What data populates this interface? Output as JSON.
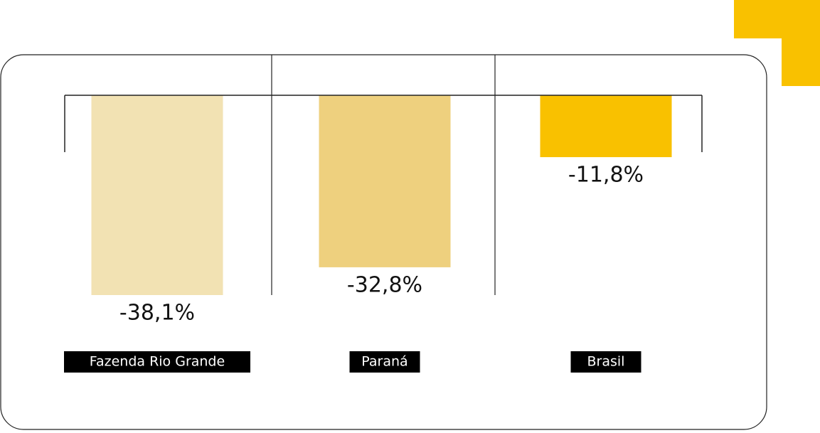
{
  "chart_data": {
    "type": "bar",
    "categories": [
      "Fazenda Rio Grande",
      "Paraná",
      "Brasil"
    ],
    "values": [
      -38.1,
      -32.8,
      -11.8
    ],
    "value_labels": [
      "-38,1%",
      "-32,8%",
      "-11,8%"
    ],
    "colors": [
      "#f2e2b3",
      "#eed07e",
      "#f9c100"
    ],
    "ylim": [
      -38.1,
      0
    ]
  }
}
